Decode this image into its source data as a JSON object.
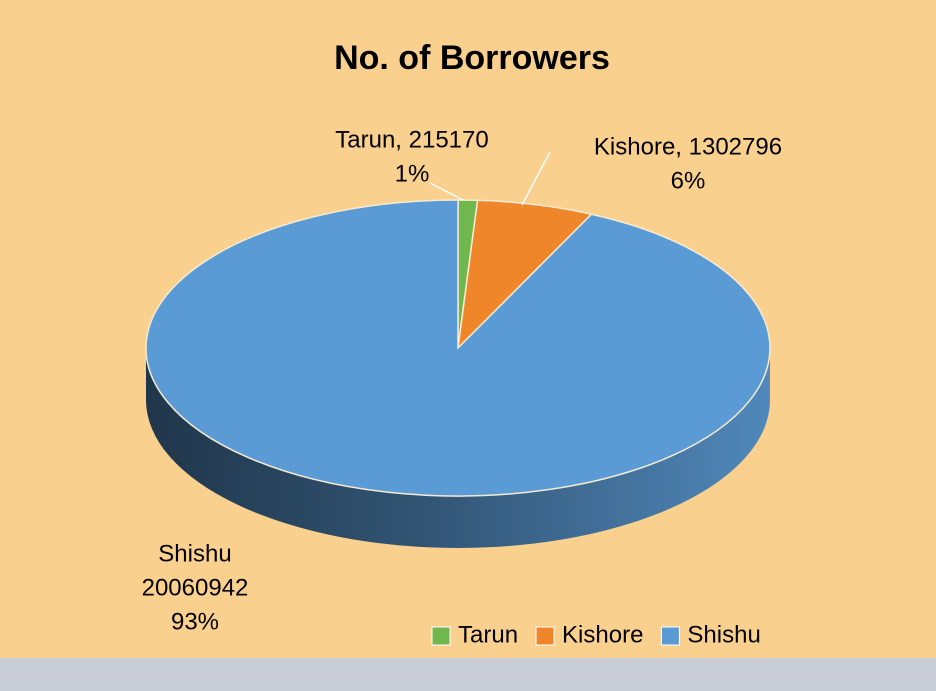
{
  "chart_data": {
    "type": "pie",
    "title": "No. of Borrowers",
    "categories": [
      "Tarun",
      "Kishore",
      "Shishu"
    ],
    "values": [
      215170,
      1302796,
      20060942
    ],
    "colors": [
      "#70b84e",
      "#f0862a",
      "#5b9bd5"
    ],
    "data_labels": [
      [
        "Tarun, 215170",
        "1%"
      ],
      [
        "Kishore, 1302796",
        "6%"
      ],
      [
        "Shishu",
        "20060942",
        "93%"
      ]
    ],
    "legend": "bottom-right",
    "three_d": true
  }
}
